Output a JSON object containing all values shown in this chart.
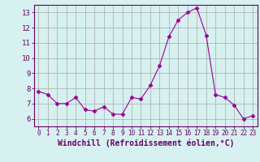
{
  "x": [
    0,
    1,
    2,
    3,
    4,
    5,
    6,
    7,
    8,
    9,
    10,
    11,
    12,
    13,
    14,
    15,
    16,
    17,
    18,
    19,
    20,
    21,
    22,
    23
  ],
  "y": [
    7.8,
    7.6,
    7.0,
    7.0,
    7.4,
    6.6,
    6.5,
    6.8,
    6.3,
    6.3,
    7.4,
    7.3,
    8.2,
    9.5,
    11.4,
    12.5,
    13.0,
    13.3,
    11.5,
    7.6,
    7.4,
    6.9,
    6.0,
    6.2
  ],
  "line_color": "#990099",
  "marker": "D",
  "marker_size": 2.5,
  "bg_color": "#d7f0f0",
  "grid_color": "#aaaaaa",
  "xlabel": "Windchill (Refroidissement éolien,°C)",
  "xlim": [
    -0.5,
    23.5
  ],
  "ylim": [
    5.5,
    13.5
  ],
  "yticks": [
    6,
    7,
    8,
    9,
    10,
    11,
    12,
    13
  ],
  "xticks": [
    0,
    1,
    2,
    3,
    4,
    5,
    6,
    7,
    8,
    9,
    10,
    11,
    12,
    13,
    14,
    15,
    16,
    17,
    18,
    19,
    20,
    21,
    22,
    23
  ],
  "label_color": "#660066",
  "tick_color": "#660066",
  "spine_color": "#660066",
  "x_font_size": 5.5,
  "y_font_size": 6.5,
  "xlabel_font_size": 7.0
}
